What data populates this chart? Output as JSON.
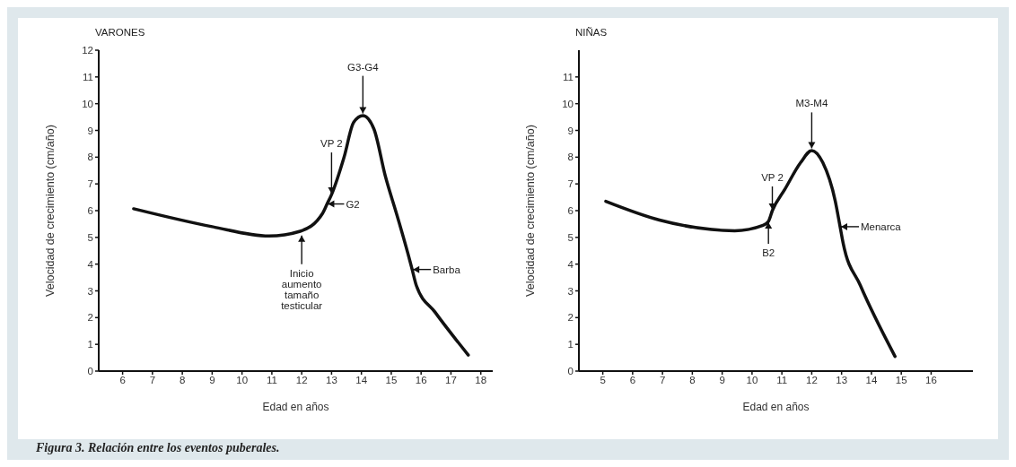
{
  "chart_data": [
    {
      "type": "line",
      "title": "VARONES",
      "xlabel": "Edad en años",
      "ylabel": "Velocidad de crecimiento (cm/año)",
      "marker": "none",
      "line_style": "solid",
      "x": [
        6.37,
        9.0,
        10.9,
        11.95,
        12.7,
        12.85,
        13.0,
        13.42,
        13.74,
        14.05,
        14.42,
        14.8,
        15.2,
        15.63,
        15.7,
        15.84,
        16.47,
        17.58
      ],
      "series": [
        {
          "color": "#111111",
          "values": [
            6.07,
            5.4,
            5.05,
            5.23,
            5.9,
            6.25,
            6.6,
            8.0,
            9.3,
            9.55,
            9.05,
            7.3,
            5.8,
            4.1,
            3.8,
            3.2,
            2.2,
            0.6
          ]
        }
      ],
      "xlim": [
        5.2,
        18.4
      ],
      "xticks": [
        6,
        7,
        8,
        9,
        10,
        11,
        12,
        13,
        14,
        15,
        16,
        17,
        18
      ],
      "ylim": [
        0,
        12
      ],
      "yticks": [
        0,
        1,
        2,
        3,
        4,
        5,
        6,
        7,
        8,
        9,
        10,
        11,
        12
      ],
      "annotations": [
        {
          "text": "G3-G4",
          "x": 14.05,
          "y": 9.6
        },
        {
          "text": "VP 2",
          "x": 13.0,
          "y": 6.6
        },
        {
          "text": "G2",
          "x": 12.85,
          "y": 6.25
        },
        {
          "text": "Inicio aumento tamaño testicular",
          "x": 12.0,
          "y": 5.1
        },
        {
          "text": "Barba",
          "x": 15.7,
          "y": 3.8
        },
        "Figura 3. Relación entre los eventos puberales."
      ]
    },
    {
      "type": "line",
      "title": "NIÑAS",
      "xlabel": "Edad en años",
      "ylabel": "Velocidad de crecimiento (cm/año)",
      "marker": "none",
      "line_style": "solid",
      "x": [
        5.1,
        6.9,
        9.42,
        10.37,
        10.55,
        10.68,
        11.1,
        11.63,
        12.0,
        12.37,
        12.79,
        12.95,
        13.05,
        13.63,
        14.79
      ],
      "series": [
        {
          "color": "#111111",
          "values": [
            6.35,
            5.65,
            5.25,
            5.45,
            5.6,
            6.0,
            6.8,
            7.8,
            8.25,
            7.8,
            6.35,
            5.4,
            4.8,
            3.2,
            0.55
          ]
        }
      ],
      "xlim": [
        4.2,
        17.4
      ],
      "xticks": [
        5,
        6,
        7,
        8,
        9,
        10,
        11,
        12,
        13,
        14,
        15,
        16
      ],
      "ylim": [
        0,
        12
      ],
      "yticks": [
        0,
        1,
        2,
        3,
        4,
        5,
        6,
        7,
        8,
        9,
        10,
        11
      ],
      "annotations": [
        {
          "text": "M3-M4",
          "x": 12.0,
          "y": 8.3
        },
        {
          "text": "VP 2",
          "x": 10.68,
          "y": 6.0
        },
        {
          "text": "B2",
          "x": 10.55,
          "y": 5.6
        },
        {
          "text": "Menarca",
          "x": 12.95,
          "y": 5.4
        }
      ]
    }
  ]
}
